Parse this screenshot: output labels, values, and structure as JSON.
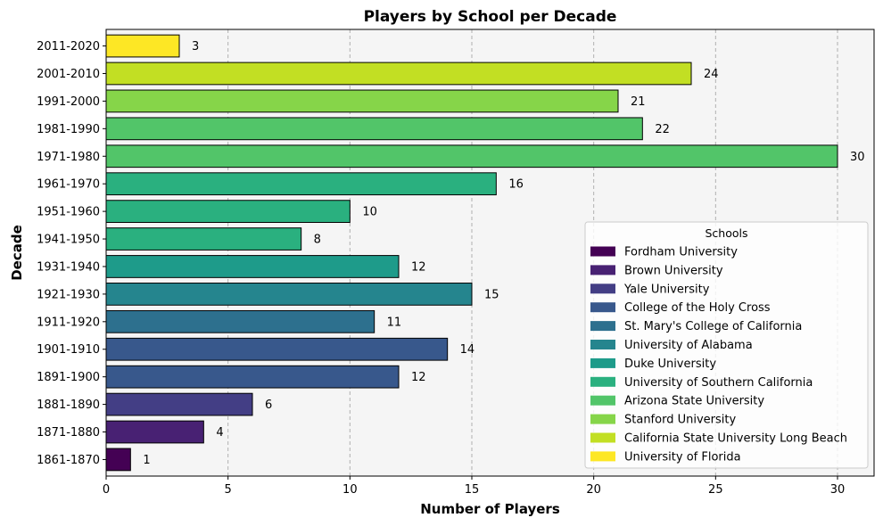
{
  "chart_data": {
    "type": "bar",
    "orientation": "horizontal",
    "title": "Players by School per Decade",
    "xlabel": "Number of Players",
    "ylabel": "Decade",
    "xlim": [
      0,
      31.5
    ],
    "xticks": [
      0,
      5,
      10,
      15,
      20,
      25,
      30
    ],
    "grid": "x-dashed",
    "categories": [
      "1861-1870",
      "1871-1880",
      "1881-1890",
      "1891-1900",
      "1901-1910",
      "1911-1920",
      "1921-1930",
      "1931-1940",
      "1941-1950",
      "1951-1960",
      "1961-1970",
      "1971-1980",
      "1981-1990",
      "1991-2000",
      "2001-2010",
      "2011-2020"
    ],
    "values": [
      1,
      4,
      6,
      12,
      14,
      11,
      15,
      12,
      8,
      10,
      16,
      30,
      22,
      21,
      24,
      3
    ],
    "bar_colors": [
      "#440154",
      "#482173",
      "#433e85",
      "#38588c",
      "#38588c",
      "#2d708e",
      "#25858e",
      "#1e9b8a",
      "#2ab07f",
      "#2ab07f",
      "#2ab07f",
      "#52c569",
      "#52c569",
      "#86d549",
      "#c2df23",
      "#fde725"
    ],
    "legend": {
      "title": "Schools",
      "placement": "lower-right",
      "entries": [
        {
          "label": "Fordham University",
          "color": "#440154"
        },
        {
          "label": "Brown University",
          "color": "#482173"
        },
        {
          "label": "Yale University",
          "color": "#433e85"
        },
        {
          "label": "College of the Holy Cross",
          "color": "#38588c"
        },
        {
          "label": "St. Mary's College of California",
          "color": "#2d708e"
        },
        {
          "label": "University of Alabama",
          "color": "#25858e"
        },
        {
          "label": "Duke University",
          "color": "#1e9b8a"
        },
        {
          "label": "University of Southern California",
          "color": "#2ab07f"
        },
        {
          "label": "Arizona State University",
          "color": "#52c569"
        },
        {
          "label": "Stanford University",
          "color": "#86d549"
        },
        {
          "label": "California State University Long Beach",
          "color": "#c2df23"
        },
        {
          "label": "University of Florida",
          "color": "#fde725"
        }
      ]
    }
  }
}
